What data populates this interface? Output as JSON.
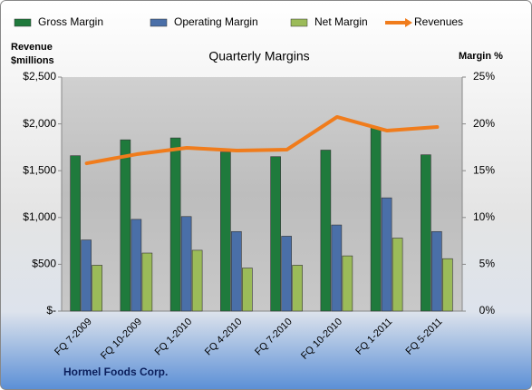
{
  "chart_data": {
    "type": "bar",
    "title": "Quarterly Margins",
    "y_label": [
      "Revenue",
      "$millions"
    ],
    "y2_label": "Margin %",
    "source": "Hormel Foods Corp.",
    "categories": [
      "FQ 7-2009",
      "FQ 10-2009",
      "FQ 1-2010",
      "FQ 4-2010",
      "FQ 7-2010",
      "FQ 10-2010",
      "FQ 1-2011",
      "FQ 5-2011"
    ],
    "series": [
      {
        "name": "Gross Margin",
        "color": "#1f7a3c",
        "axis": "y2",
        "values": [
          16.6,
          18.3,
          18.5,
          17.0,
          16.5,
          17.2,
          19.6,
          16.7
        ]
      },
      {
        "name": "Operating Margin",
        "color": "#4a6fa8",
        "axis": "y2",
        "values": [
          7.6,
          9.8,
          10.1,
          8.5,
          8.0,
          9.2,
          12.1,
          8.5
        ]
      },
      {
        "name": "Net Margin",
        "color": "#9bbb59",
        "axis": "y2",
        "values": [
          4.9,
          6.2,
          6.5,
          4.6,
          4.9,
          5.9,
          7.8,
          5.6
        ]
      },
      {
        "name": "Revenues",
        "color": "#f07c1c",
        "type": "line",
        "values": [
          1579,
          1676,
          1744,
          1715,
          1725,
          2074,
          1928,
          1967
        ]
      }
    ],
    "ylim": [
      0,
      2500
    ],
    "yticks": [
      {
        "value": 0,
        "label": "$-"
      },
      {
        "value": 500,
        "label": "$500"
      },
      {
        "value": 1000,
        "label": "$1,000"
      },
      {
        "value": 1500,
        "label": "$1,500"
      },
      {
        "value": 2000,
        "label": "$2,000"
      },
      {
        "value": 2500,
        "label": "$2,500"
      }
    ],
    "y2lim": [
      0,
      25
    ],
    "y2ticks": [
      {
        "value": 0,
        "label": "0%"
      },
      {
        "value": 5,
        "label": "5%"
      },
      {
        "value": 10,
        "label": "10%"
      },
      {
        "value": 15,
        "label": "15%"
      },
      {
        "value": 20,
        "label": "20%"
      },
      {
        "value": 25,
        "label": "25%"
      }
    ],
    "legend": "top"
  }
}
